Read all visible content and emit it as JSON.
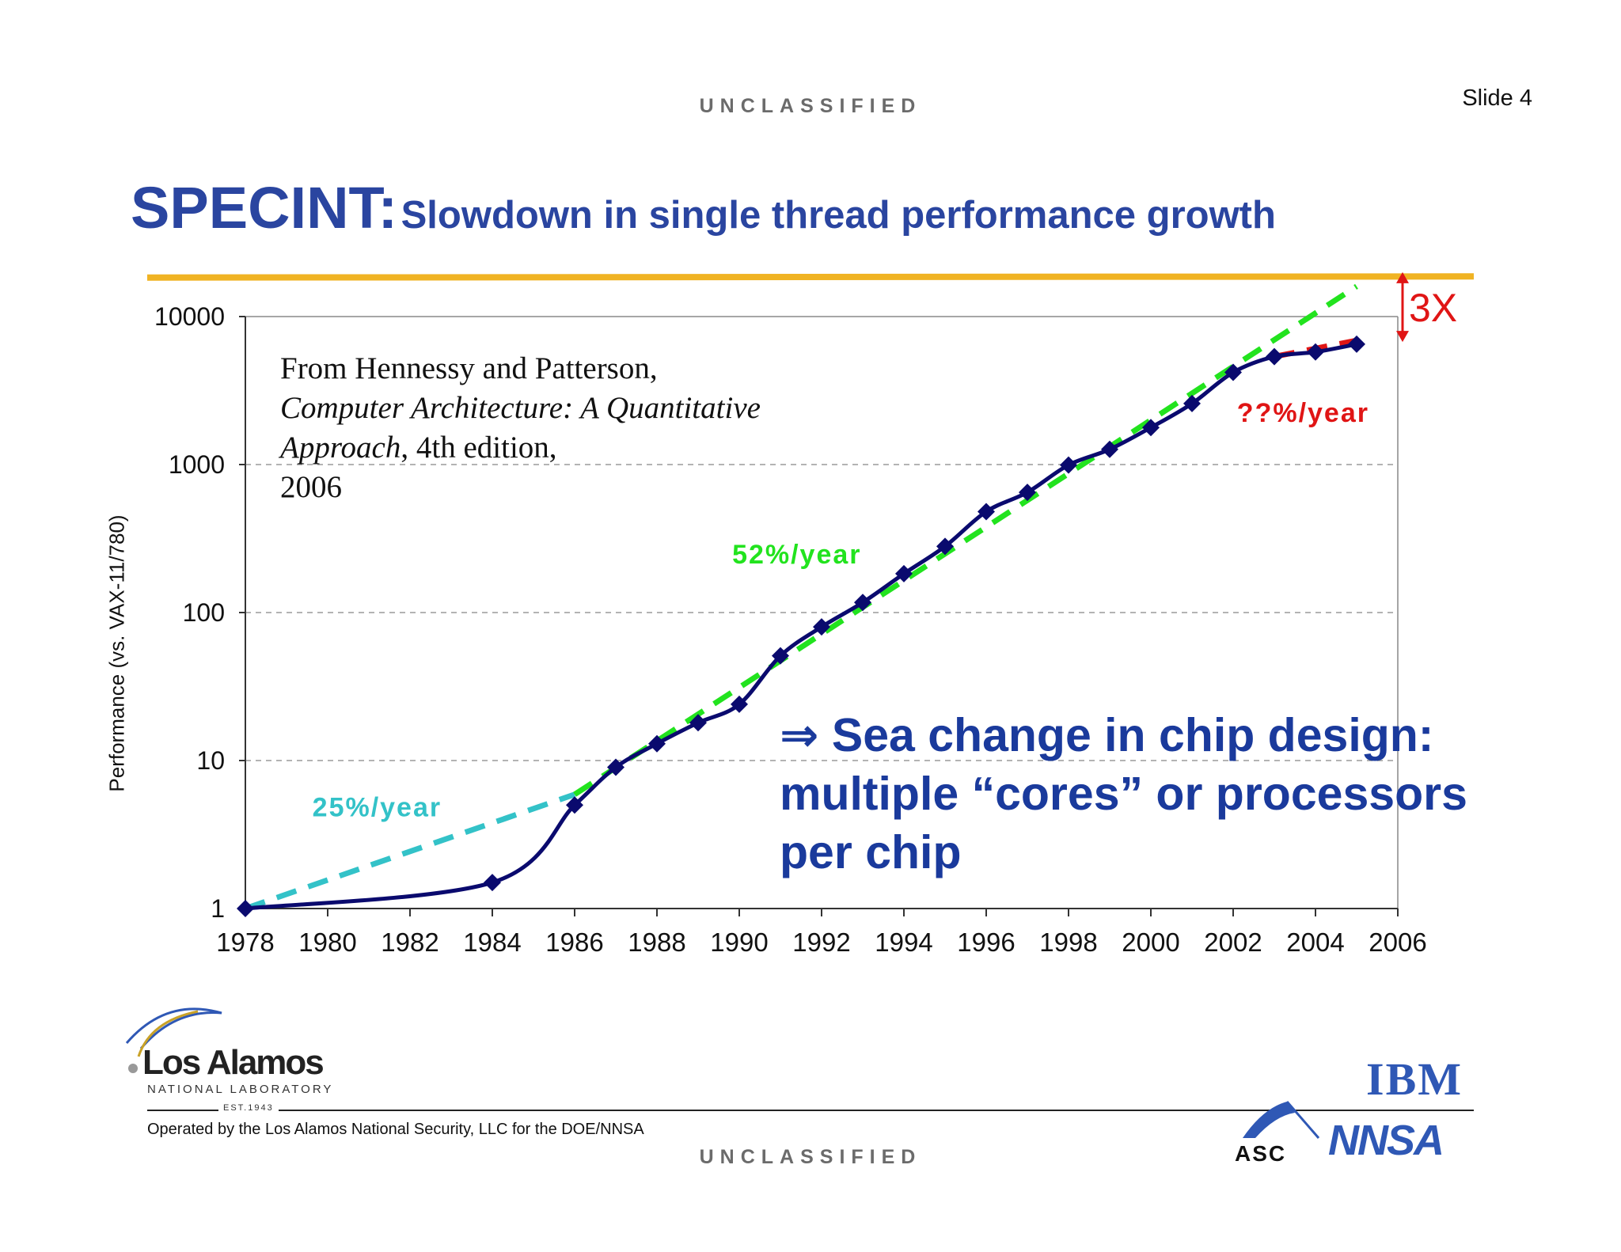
{
  "header": {
    "banner_top": "UNCLASSIFIED",
    "banner_bottom": "UNCLASSIFIED",
    "slide_number": "Slide 4"
  },
  "title": {
    "main": "SPECINT:",
    "sub": "Slowdown in single thread performance growth"
  },
  "citation": {
    "line1": "From Hennessy and Patterson,",
    "book": "Computer Architecture: A Quantitative Approach",
    "edition": ", 4th edition,",
    "year": "2006"
  },
  "callout": {
    "arrow": "⇒",
    "text": "Sea change in chip design: multiple “cores” or processors per chip"
  },
  "footer": {
    "operated_by": "Operated by the Los Alamos National Security, LLC for the DOE/NNSA",
    "lanl_name": "Los Alamos",
    "lanl_sub": "NATIONAL LABORATORY",
    "lanl_est": "EST.1943",
    "ibm": "IBM",
    "nnsa": "NNSA",
    "asc": "ASC"
  },
  "colors": {
    "title_blue": "#2a45a0",
    "gold_rule": "#f0b323",
    "series": "#0a0a6e",
    "trend_25": "#33c2c8",
    "trend_52": "#22e31e",
    "trend_unknown": "#e01515"
  },
  "chart_data": {
    "type": "line",
    "title": "",
    "xlabel": "",
    "ylabel": "Performance (vs. VAX-11/780)",
    "yscale": "log",
    "xlim": [
      1978,
      2006
    ],
    "ylim": [
      1,
      10000
    ],
    "x_ticks": [
      "1978",
      "1980",
      "1982",
      "1984",
      "1986",
      "1988",
      "1990",
      "1992",
      "1994",
      "1996",
      "1998",
      "2000",
      "2002",
      "2004",
      "2006"
    ],
    "y_ticks": [
      "1",
      "10",
      "100",
      "1000",
      "10000"
    ],
    "grid": "horizontal dashed",
    "series": [
      {
        "name": "",
        "x": [
          1978,
          1984,
          1986,
          1987,
          1988,
          1989,
          1990,
          1991,
          1992,
          1993,
          1994,
          1995,
          1996,
          1997,
          1998,
          1999,
          2000,
          2001,
          2002,
          2003,
          2004,
          2005
        ],
        "values": [
          1,
          1.5,
          5,
          9,
          13,
          18,
          24,
          51,
          80,
          117,
          183,
          280,
          481,
          649,
          993,
          1267,
          1779,
          2584,
          4195,
          5364,
          5764,
          6505
        ]
      }
    ],
    "trend_lines": [
      {
        "label": "25%/year",
        "x": [
          1978,
          1986
        ],
        "values": [
          1,
          5.9
        ]
      },
      {
        "label": "52%/year",
        "x": [
          1986,
          2005
        ],
        "values": [
          5.9,
          16000
        ]
      },
      {
        "label": "??%/year",
        "x": [
          2003,
          2005
        ],
        "values": [
          5364,
          6900
        ]
      }
    ],
    "annotations": [
      {
        "text": "3X",
        "x": 2005,
        "from": 6900,
        "to": 16000
      }
    ]
  }
}
